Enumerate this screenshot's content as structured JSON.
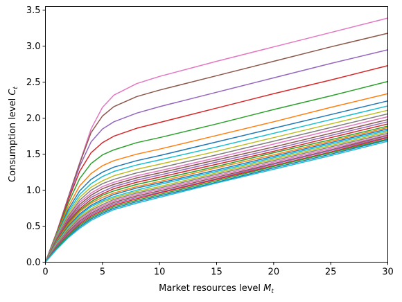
{
  "chart_data": {
    "type": "line",
    "title": "",
    "xlabel": "Market resources level ",
    "xlabel_var": "M",
    "xlabel_sub": "t",
    "ylabel": "Consumption level ",
    "ylabel_var": "C",
    "ylabel_sub": "t",
    "xlim": [
      0,
      30
    ],
    "ylim": [
      0,
      3.55
    ],
    "xticks": [
      0,
      5,
      10,
      15,
      20,
      25,
      30
    ],
    "yticks": [
      0.0,
      0.5,
      1.0,
      1.5,
      2.0,
      2.5,
      3.0,
      3.5
    ],
    "xtick_labels": [
      "0",
      "5",
      "10",
      "15",
      "20",
      "25",
      "30"
    ],
    "ytick_labels": [
      "0.0",
      "0.5",
      "1.0",
      "1.5",
      "2.0",
      "2.5",
      "3.0",
      "3.5"
    ],
    "grid": false,
    "legend": "none",
    "sample_x": [
      0,
      1,
      2,
      3,
      4,
      5,
      6,
      8,
      10,
      15,
      20,
      25,
      30
    ],
    "series": [
      {
        "color": "#e377c2",
        "values": [
          0,
          0.42,
          0.9,
          1.38,
          1.85,
          2.15,
          2.32,
          2.48,
          2.58,
          2.79,
          2.99,
          3.19,
          3.39
        ]
      },
      {
        "color": "#8c564b",
        "values": [
          0,
          0.42,
          0.9,
          1.37,
          1.8,
          2.03,
          2.16,
          2.3,
          2.39,
          2.59,
          2.79,
          2.99,
          3.18
        ]
      },
      {
        "color": "#9467bd",
        "values": [
          0,
          0.42,
          0.88,
          1.33,
          1.67,
          1.85,
          1.95,
          2.07,
          2.16,
          2.36,
          2.56,
          2.76,
          2.95
        ]
      },
      {
        "color": "#d62728",
        "values": [
          0,
          0.41,
          0.86,
          1.26,
          1.52,
          1.66,
          1.75,
          1.86,
          1.94,
          2.14,
          2.34,
          2.53,
          2.73
        ]
      },
      {
        "color": "#2ca02c",
        "values": [
          0,
          0.4,
          0.82,
          1.16,
          1.37,
          1.49,
          1.56,
          1.66,
          1.73,
          1.92,
          2.12,
          2.31,
          2.51
        ]
      },
      {
        "color": "#ff7f0e",
        "values": [
          0,
          0.39,
          0.77,
          1.06,
          1.23,
          1.34,
          1.41,
          1.5,
          1.57,
          1.76,
          1.95,
          2.15,
          2.34
        ]
      },
      {
        "color": "#1f77b4",
        "values": [
          0,
          0.38,
          0.73,
          0.99,
          1.15,
          1.25,
          1.32,
          1.41,
          1.48,
          1.67,
          1.86,
          2.05,
          2.24
        ]
      },
      {
        "color": "#17becf",
        "values": [
          0,
          0.37,
          0.7,
          0.94,
          1.09,
          1.19,
          1.26,
          1.35,
          1.42,
          1.6,
          1.79,
          1.98,
          2.17
        ]
      },
      {
        "color": "#bcbd22",
        "values": [
          0,
          0.36,
          0.67,
          0.9,
          1.04,
          1.13,
          1.2,
          1.29,
          1.36,
          1.54,
          1.73,
          1.92,
          2.11
        ]
      },
      {
        "color": "#7f7f7f",
        "values": [
          0,
          0.35,
          0.64,
          0.86,
          1.0,
          1.09,
          1.15,
          1.24,
          1.31,
          1.49,
          1.68,
          1.87,
          2.06
        ]
      },
      {
        "color": "#e377c2",
        "values": [
          0,
          0.34,
          0.62,
          0.83,
          0.96,
          1.05,
          1.11,
          1.2,
          1.27,
          1.45,
          1.64,
          1.83,
          2.02
        ]
      },
      {
        "color": "#8c564b",
        "values": [
          0,
          0.33,
          0.6,
          0.8,
          0.93,
          1.02,
          1.08,
          1.17,
          1.24,
          1.42,
          1.6,
          1.79,
          1.98
        ]
      },
      {
        "color": "#9467bd",
        "values": [
          0,
          0.32,
          0.58,
          0.77,
          0.9,
          0.98,
          1.05,
          1.14,
          1.21,
          1.39,
          1.57,
          1.76,
          1.95
        ]
      },
      {
        "color": "#d62728",
        "values": [
          0,
          0.31,
          0.56,
          0.74,
          0.87,
          0.95,
          1.02,
          1.11,
          1.18,
          1.36,
          1.54,
          1.73,
          1.92
        ]
      },
      {
        "color": "#2ca02c",
        "values": [
          0,
          0.3,
          0.54,
          0.72,
          0.84,
          0.93,
          0.99,
          1.08,
          1.15,
          1.33,
          1.52,
          1.7,
          1.89
        ]
      },
      {
        "color": "#ff7f0e",
        "values": [
          0,
          0.29,
          0.52,
          0.7,
          0.82,
          0.9,
          0.96,
          1.05,
          1.12,
          1.31,
          1.49,
          1.68,
          1.87
        ]
      },
      {
        "color": "#1f77b4",
        "values": [
          0,
          0.28,
          0.5,
          0.67,
          0.79,
          0.87,
          0.94,
          1.03,
          1.1,
          1.28,
          1.47,
          1.66,
          1.85
        ]
      },
      {
        "color": "#17becf",
        "values": [
          0,
          0.27,
          0.48,
          0.65,
          0.77,
          0.85,
          0.91,
          1.0,
          1.08,
          1.26,
          1.45,
          1.64,
          1.83
        ]
      },
      {
        "color": "#bcbd22",
        "values": [
          0,
          0.26,
          0.47,
          0.63,
          0.74,
          0.83,
          0.89,
          0.98,
          1.05,
          1.24,
          1.43,
          1.62,
          1.81
        ]
      },
      {
        "color": "#7f7f7f",
        "values": [
          0,
          0.25,
          0.45,
          0.61,
          0.72,
          0.8,
          0.87,
          0.96,
          1.03,
          1.22,
          1.41,
          1.6,
          1.79
        ]
      },
      {
        "color": "#e377c2",
        "values": [
          0,
          0.24,
          0.43,
          0.59,
          0.7,
          0.78,
          0.85,
          0.94,
          1.01,
          1.2,
          1.39,
          1.58,
          1.77
        ]
      },
      {
        "color": "#8c564b",
        "values": [
          0,
          0.23,
          0.42,
          0.57,
          0.68,
          0.76,
          0.83,
          0.92,
          0.99,
          1.18,
          1.37,
          1.56,
          1.76
        ]
      },
      {
        "color": "#9467bd",
        "values": [
          0,
          0.22,
          0.4,
          0.55,
          0.66,
          0.74,
          0.81,
          0.9,
          0.97,
          1.16,
          1.36,
          1.55,
          1.74
        ]
      },
      {
        "color": "#d62728",
        "values": [
          0,
          0.21,
          0.38,
          0.53,
          0.64,
          0.72,
          0.79,
          0.88,
          0.96,
          1.15,
          1.34,
          1.53,
          1.73
        ]
      },
      {
        "color": "#2ca02c",
        "values": [
          0,
          0.2,
          0.37,
          0.51,
          0.62,
          0.7,
          0.77,
          0.86,
          0.94,
          1.13,
          1.33,
          1.52,
          1.71
        ]
      },
      {
        "color": "#1f77b4",
        "values": [
          0,
          0.19,
          0.35,
          0.49,
          0.6,
          0.68,
          0.75,
          0.84,
          0.92,
          1.11,
          1.31,
          1.5,
          1.7
        ]
      },
      {
        "color": "#17becf",
        "values": [
          0,
          0.18,
          0.34,
          0.47,
          0.58,
          0.66,
          0.73,
          0.82,
          0.9,
          1.1,
          1.29,
          1.48,
          1.68
        ]
      }
    ]
  }
}
